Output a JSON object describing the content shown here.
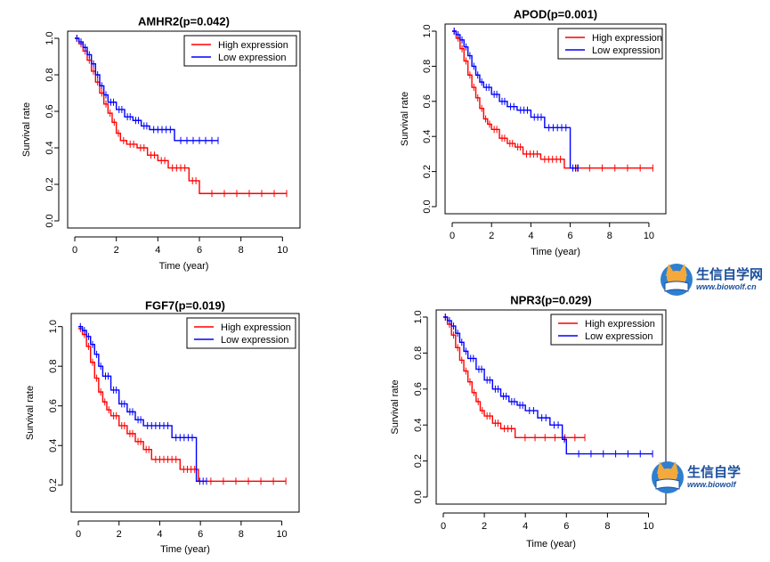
{
  "chart_data": [
    {
      "type": "line",
      "title": "AMHR2(p=0.042)",
      "xlabel": "Time (year)",
      "ylabel": "Survival rate",
      "xlim": [
        0,
        10.5
      ],
      "ylim": [
        0,
        1
      ],
      "xticks": [
        "0",
        "2",
        "4",
        "6",
        "8",
        "10"
      ],
      "yticks": [
        "0.0",
        "0.2",
        "0.4",
        "0.6",
        "0.8",
        "1.0"
      ],
      "legend": [
        "High expression",
        "Low expression"
      ],
      "legend_position": "top-right",
      "series": [
        {
          "name": "High expression",
          "color": "#ff0000",
          "x": [
            0,
            0.2,
            0.4,
            0.6,
            0.8,
            1.0,
            1.2,
            1.4,
            1.6,
            1.8,
            2.0,
            2.2,
            2.5,
            3.0,
            3.5,
            4.0,
            4.5,
            5.5,
            6.0,
            10.2
          ],
          "y": [
            1.0,
            0.97,
            0.93,
            0.88,
            0.82,
            0.76,
            0.7,
            0.64,
            0.59,
            0.54,
            0.48,
            0.44,
            0.42,
            0.4,
            0.36,
            0.33,
            0.29,
            0.22,
            0.15,
            0.15
          ]
        },
        {
          "name": "Low expression",
          "color": "#0000ff",
          "x": [
            0,
            0.2,
            0.4,
            0.6,
            0.8,
            1.0,
            1.2,
            1.4,
            1.6,
            2.0,
            2.4,
            2.8,
            3.2,
            3.6,
            4.8,
            6.9
          ],
          "y": [
            1.0,
            0.98,
            0.95,
            0.91,
            0.86,
            0.8,
            0.74,
            0.69,
            0.65,
            0.61,
            0.57,
            0.55,
            0.52,
            0.5,
            0.44,
            0.44
          ]
        }
      ]
    },
    {
      "type": "line",
      "title": "APOD(p=0.001)",
      "xlabel": "Time (year)",
      "ylabel": "Survival rate",
      "xlim": [
        0,
        10.5
      ],
      "ylim": [
        0,
        1
      ],
      "xticks": [
        "0",
        "2",
        "4",
        "6",
        "8",
        "10"
      ],
      "yticks": [
        "0.0",
        "0.2",
        "0.4",
        "0.6",
        "0.8",
        "1.0"
      ],
      "legend": [
        "High expression",
        "Low expression"
      ],
      "legend_position": "top-right",
      "series": [
        {
          "name": "High expression",
          "color": "#ff0000",
          "x": [
            0,
            0.2,
            0.4,
            0.6,
            0.8,
            1.0,
            1.2,
            1.4,
            1.6,
            1.8,
            2.0,
            2.4,
            2.8,
            3.2,
            3.6,
            4.5,
            5.7,
            10.2
          ],
          "y": [
            1.0,
            0.96,
            0.9,
            0.83,
            0.75,
            0.68,
            0.62,
            0.56,
            0.5,
            0.47,
            0.44,
            0.39,
            0.36,
            0.34,
            0.3,
            0.27,
            0.22,
            0.22
          ]
        },
        {
          "name": "Low expression",
          "color": "#0000ff",
          "x": [
            0,
            0.2,
            0.4,
            0.6,
            0.8,
            1.0,
            1.2,
            1.4,
            1.6,
            2.0,
            2.4,
            2.8,
            3.3,
            4.0,
            4.7,
            6.0,
            6.4
          ],
          "y": [
            1.0,
            0.98,
            0.95,
            0.91,
            0.86,
            0.8,
            0.75,
            0.71,
            0.68,
            0.64,
            0.6,
            0.57,
            0.55,
            0.51,
            0.45,
            0.22,
            0.22
          ]
        }
      ]
    },
    {
      "type": "line",
      "title": "FGF7(p=0.019)",
      "xlabel": "Time (year)",
      "ylabel": "Survival rate",
      "xlim": [
        0,
        10.5
      ],
      "ylim": [
        0.1,
        1.03
      ],
      "xticks": [
        "0",
        "2",
        "4",
        "6",
        "8",
        "10"
      ],
      "yticks": [
        "0.2",
        "0.4",
        "0.6",
        "0.8",
        "1.0"
      ],
      "legend": [
        "High expression",
        "Low expression"
      ],
      "legend_position": "top-right",
      "series": [
        {
          "name": "High expression",
          "color": "#ff0000",
          "x": [
            0,
            0.2,
            0.4,
            0.6,
            0.8,
            1.0,
            1.2,
            1.4,
            1.6,
            2.0,
            2.4,
            2.8,
            3.2,
            3.6,
            5.0,
            5.9,
            10.2
          ],
          "y": [
            0.99,
            0.96,
            0.9,
            0.82,
            0.74,
            0.67,
            0.62,
            0.58,
            0.55,
            0.5,
            0.46,
            0.42,
            0.38,
            0.33,
            0.28,
            0.22,
            0.22
          ]
        },
        {
          "name": "Low expression",
          "color": "#0000ff",
          "x": [
            0,
            0.2,
            0.4,
            0.6,
            0.8,
            1.0,
            1.2,
            1.6,
            2.0,
            2.4,
            2.8,
            3.2,
            4.6,
            5.8,
            6.3
          ],
          "y": [
            1.0,
            0.98,
            0.95,
            0.91,
            0.86,
            0.8,
            0.75,
            0.68,
            0.61,
            0.57,
            0.53,
            0.5,
            0.44,
            0.22,
            0.22
          ]
        }
      ]
    },
    {
      "type": "line",
      "title": "NPR3(p=0.029)",
      "xlabel": "Time (year)",
      "ylabel": "Survival rate",
      "xlim": [
        0,
        10.5
      ],
      "ylim": [
        0,
        1
      ],
      "xticks": [
        "0",
        "2",
        "4",
        "6",
        "8",
        "10"
      ],
      "yticks": [
        "0.0",
        "0.2",
        "0.4",
        "0.6",
        "0.8",
        "1.0"
      ],
      "legend": [
        "High expression",
        "Low expression"
      ],
      "legend_position": "top-right",
      "series": [
        {
          "name": "High expression",
          "color": "#ff0000",
          "x": [
            0,
            0.2,
            0.4,
            0.6,
            0.8,
            1.0,
            1.2,
            1.4,
            1.6,
            1.8,
            2.0,
            2.4,
            2.8,
            3.5,
            6.9
          ],
          "y": [
            1.0,
            0.96,
            0.9,
            0.83,
            0.76,
            0.7,
            0.64,
            0.58,
            0.53,
            0.48,
            0.45,
            0.41,
            0.38,
            0.33,
            0.33
          ]
        },
        {
          "name": "Low expression",
          "color": "#0000ff",
          "x": [
            0,
            0.2,
            0.4,
            0.6,
            0.8,
            1.0,
            1.2,
            1.6,
            2.0,
            2.4,
            2.8,
            3.2,
            3.6,
            4.0,
            4.6,
            5.2,
            5.8,
            6.0,
            10.2
          ],
          "y": [
            1.0,
            0.98,
            0.95,
            0.91,
            0.86,
            0.81,
            0.77,
            0.71,
            0.65,
            0.6,
            0.56,
            0.53,
            0.51,
            0.48,
            0.44,
            0.4,
            0.32,
            0.24,
            0.24
          ]
        }
      ]
    }
  ],
  "watermarks": [
    {
      "name": "生信自学网",
      "url": "www.biowolf.cn"
    },
    {
      "name": "生信自学",
      "url": "www.biowolf"
    }
  ]
}
